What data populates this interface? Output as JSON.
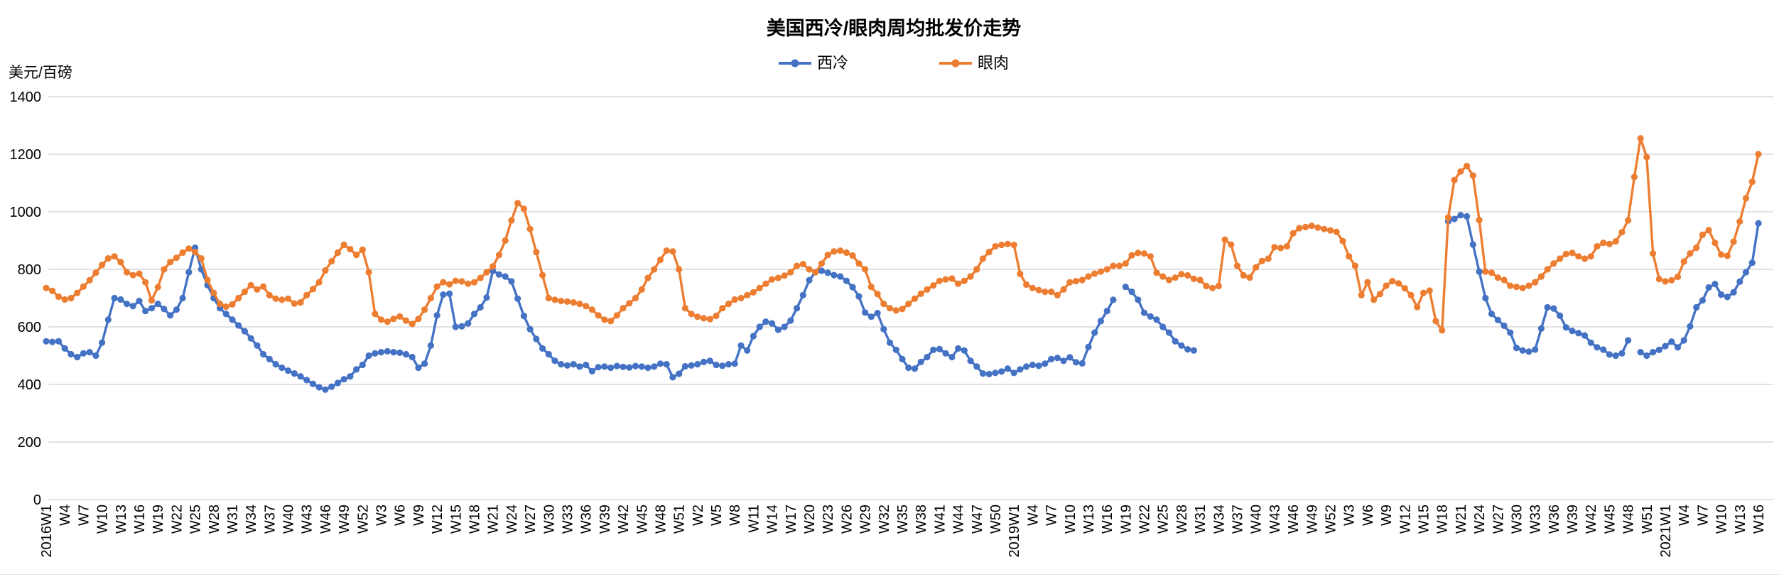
{
  "header": {
    "title": "美国西冷/眼肉周均批发价走势"
  },
  "legend": [
    {
      "label": "西冷",
      "color": "#4472C4"
    },
    {
      "label": "眼肉",
      "color": "#ED7D31"
    }
  ],
  "axes": {
    "y_title": "美元/百磅",
    "y_ticks": [
      1400,
      1200,
      1000,
      800,
      600,
      400,
      200,
      0
    ],
    "x_tick_labels": [
      "2016W1",
      "W4",
      "W7",
      "W10",
      "W13",
      "W16",
      "W19",
      "W22",
      "W25",
      "W28",
      "W31",
      "W34",
      "W37",
      "W40",
      "W43",
      "W46",
      "W49",
      "W52",
      "W3",
      "W6",
      "W9",
      "W12",
      "W15",
      "W18",
      "W21",
      "W24",
      "W27",
      "W30",
      "W33",
      "W36",
      "W39",
      "W42",
      "W45",
      "W48",
      "W51",
      "W2",
      "W5",
      "W8",
      "W11",
      "W14",
      "W17",
      "W20",
      "W23",
      "W26",
      "W29",
      "W32",
      "W35",
      "W38",
      "W41",
      "W44",
      "W47",
      "W50",
      "2019W1",
      "W4",
      "W7",
      "W10",
      "W13",
      "W16",
      "W19",
      "W22",
      "W25",
      "W28",
      "W31",
      "W34",
      "W37",
      "W40",
      "W43",
      "W46",
      "W49",
      "W52",
      "W3",
      "W6",
      "W9",
      "W12",
      "W15",
      "W18",
      "W21",
      "W24",
      "W27",
      "W30",
      "W33",
      "W36",
      "W39",
      "W42",
      "W45",
      "W48",
      "W51",
      "2021W1",
      "W4",
      "W7",
      "W10",
      "W13",
      "W16"
    ],
    "x_tick_every": 3
  },
  "chart_data": {
    "type": "line",
    "title": "美国西冷/眼肉周均批发价走势",
    "ylabel": "美元/百磅",
    "ylim": [
      0,
      1400
    ],
    "grid": "horizontal",
    "legend_position": "top-center",
    "x_unit": "week",
    "category_spans": {
      "2016": 52,
      "2017": 52,
      "2018": 52,
      "2019": 52,
      "2020": 53,
      "2021": 16
    },
    "series": [
      {
        "name": "西冷",
        "color": "#4472C4",
        "values": [
          550,
          548,
          550,
          525,
          505,
          495,
          508,
          512,
          500,
          545,
          625,
          700,
          695,
          680,
          672,
          690,
          655,
          665,
          680,
          662,
          640,
          660,
          700,
          790,
          875,
          800,
          745,
          700,
          665,
          645,
          625,
          605,
          585,
          560,
          535,
          505,
          488,
          470,
          458,
          448,
          438,
          428,
          415,
          402,
          390,
          382,
          392,
          405,
          418,
          428,
          452,
          468,
          500,
          508,
          512,
          515,
          512,
          510,
          505,
          495,
          458,
          472,
          535,
          640,
          712,
          715,
          600,
          602,
          612,
          645,
          668,
          702,
          795,
          782,
          775,
          758,
          698,
          638,
          592,
          558,
          525,
          505,
          482,
          470,
          466,
          470,
          462,
          468,
          446,
          460,
          462,
          458,
          464,
          461,
          459,
          464,
          462,
          458,
          462,
          472,
          470,
          425,
          437,
          463,
          466,
          470,
          478,
          482,
          468,
          465,
          470,
          472,
          535,
          518,
          568,
          600,
          618,
          612,
          590,
          600,
          622,
          665,
          710,
          762,
          790,
          795,
          788,
          780,
          775,
          760,
          738,
          706,
          650,
          635,
          648,
          592,
          545,
          520,
          488,
          458,
          455,
          478,
          495,
          520,
          523,
          508,
          495,
          525,
          518,
          482,
          462,
          438,
          436,
          440,
          445,
          455,
          440,
          452,
          462,
          468,
          465,
          472,
          488,
          492,
          482,
          494,
          477,
          473,
          530,
          580,
          620,
          655,
          694,
          null,
          739,
          722,
          694,
          649,
          636,
          625,
          600,
          580,
          550,
          535,
          522,
          518,
          null,
          null,
          null,
          null,
          null,
          null,
          null,
          null,
          null,
          null,
          null,
          null,
          null,
          null,
          null,
          null,
          null,
          null,
          null,
          null,
          null,
          null,
          null,
          null,
          null,
          null,
          null,
          null,
          null,
          null,
          null,
          null,
          null,
          null,
          null,
          null,
          null,
          null,
          null,
          null,
          967,
          975,
          988,
          984,
          886,
          792,
          700,
          645,
          624,
          604,
          580,
          527,
          518,
          514,
          521,
          594,
          668,
          664,
          639,
          598,
          586,
          578,
          570,
          545,
          529,
          521,
          504,
          500,
          508,
          553,
          null,
          512,
          500,
          512,
          520,
          533,
          549,
          529,
          553,
          602,
          668,
          692,
          737,
          749,
          712,
          704,
          720,
          757,
          790,
          823,
          960
        ]
      },
      {
        "name": "眼肉",
        "color": "#ED7D31",
        "values": [
          735,
          725,
          705,
          695,
          700,
          718,
          740,
          762,
          788,
          815,
          838,
          845,
          825,
          790,
          780,
          785,
          755,
          692,
          738,
          800,
          825,
          840,
          858,
          872,
          860,
          838,
          763,
          718,
          680,
          670,
          678,
          700,
          722,
          745,
          730,
          740,
          710,
          698,
          694,
          698,
          681,
          685,
          710,
          731,
          755,
          796,
          828,
          858,
          885,
          870,
          850,
          868,
          790,
          645,
          625,
          618,
          628,
          636,
          622,
          610,
          628,
          660,
          700,
          740,
          755,
          748,
          760,
          758,
          750,
          755,
          770,
          790,
          810,
          850,
          900,
          970,
          1030,
          1010,
          940,
          860,
          780,
          700,
          694,
          690,
          688,
          685,
          680,
          672,
          660,
          640,
          625,
          620,
          640,
          665,
          682,
          700,
          730,
          770,
          800,
          833,
          865,
          862,
          800,
          665,
          645,
          635,
          630,
          627,
          638,
          665,
          680,
          695,
          700,
          710,
          720,
          735,
          750,
          765,
          770,
          778,
          790,
          812,
          818,
          800,
          790,
          820,
          850,
          862,
          865,
          858,
          848,
          820,
          800,
          739,
          714,
          680,
          665,
          657,
          662,
          680,
          698,
          715,
          730,
          744,
          760,
          765,
          768,
          750,
          760,
          775,
          800,
          837,
          860,
          880,
          885,
          888,
          885,
          784,
          747,
          735,
          728,
          722,
          722,
          710,
          730,
          755,
          759,
          763,
          775,
          785,
          792,
          800,
          812,
          812,
          820,
          849,
          857,
          855,
          845,
          788,
          775,
          763,
          771,
          783,
          779,
          767,
          763,
          742,
          735,
          742,
          903,
          886,
          812,
          779,
          771,
          807,
          829,
          837,
          877,
          874,
          880,
          925,
          943,
          947,
          951,
          945,
          940,
          935,
          930,
          898,
          845,
          812,
          710,
          755,
          694,
          714,
          743,
          759,
          751,
          734,
          710,
          669,
          718,
          726,
          620,
          588,
          980,
          1110,
          1140,
          1159,
          1126,
          971,
          792,
          788,
          771,
          763,
          743,
          739,
          735,
          743,
          755,
          775,
          800,
          820,
          837,
          853,
          857,
          845,
          837,
          845,
          880,
          892,
          888,
          897,
          929,
          970,
          1121,
          1255,
          1190,
          855,
          766,
          758,
          762,
          774,
          827,
          855,
          875,
          920,
          936,
          892,
          851,
          847,
          896,
          966,
          1047,
          1104,
          1200
        ]
      }
    ]
  },
  "style": {
    "gridline_color": "#D9D9D9",
    "axis_text_color": "#000000",
    "background": "#FFFFFF"
  }
}
